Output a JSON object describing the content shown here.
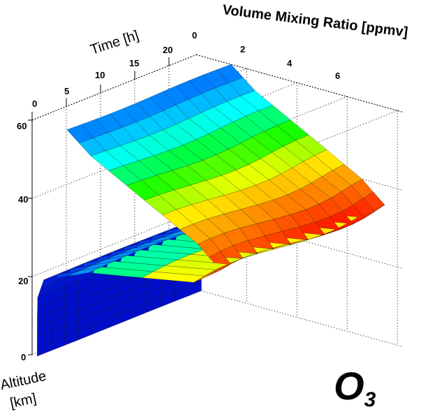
{
  "chart_data": {
    "type": "surface",
    "title": "O3",
    "title_main": "O",
    "title_sub": "3",
    "xlabel": "Time [h]",
    "ylabel": "Volume Mixing Ratio [ppmv]",
    "zlabel_line1": "Altitude",
    "zlabel_line2": "[km]",
    "time_ticks": [
      "0",
      "5",
      "10",
      "15",
      "20"
    ],
    "vmr_ticks": [
      "0",
      "2",
      "4",
      "6"
    ],
    "altitude_ticks": [
      "0",
      "20",
      "40",
      "60"
    ],
    "time_range": [
      0,
      24
    ],
    "vmr_range": [
      0,
      8
    ],
    "altitude_range": [
      0,
      60
    ],
    "colormap": [
      "#0000c0",
      "#0060ff",
      "#00ffff",
      "#00ff00",
      "#ffff00",
      "#ff8000",
      "#ff0000"
    ],
    "altitudes_km": [
      0,
      5,
      10,
      15,
      20,
      25,
      30,
      35,
      40,
      45,
      50,
      55,
      60
    ],
    "vmr_ppmv": [
      0.2,
      0.2,
      0.2,
      0.21,
      0.45,
      2.2,
      6.4,
      7.6,
      6.8,
      5.4,
      3.9,
      2.4,
      1.4
    ],
    "grid": true
  }
}
